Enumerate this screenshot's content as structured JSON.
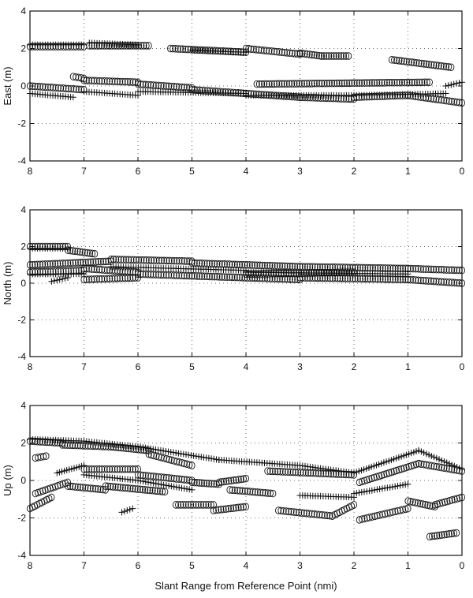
{
  "chart_data": [
    {
      "type": "scatter",
      "title": "",
      "xlabel": "",
      "ylabel": "East (m)",
      "xlim": [
        8,
        0
      ],
      "ylim": [
        -4,
        4
      ],
      "xticks": [
        8,
        7,
        6,
        5,
        4,
        3,
        2,
        1,
        0
      ],
      "yticks": [
        -4,
        -2,
        0,
        2,
        4
      ],
      "grid": true,
      "series": [
        {
          "marker": "circle",
          "segments": [
            {
              "x": [
                8.0,
                7.0
              ],
              "y": [
                2.1,
                2.1
              ]
            },
            {
              "x": [
                6.9,
                5.8
              ],
              "y": [
                2.15,
                2.15
              ]
            },
            {
              "x": [
                5.4,
                4.0
              ],
              "y": [
                2.0,
                1.8
              ]
            },
            {
              "x": [
                4.0,
                3.0
              ],
              "y": [
                2.0,
                1.7
              ]
            },
            {
              "x": [
                3.0,
                2.6
              ],
              "y": [
                1.75,
                1.6
              ]
            },
            {
              "x": [
                2.6,
                2.1
              ],
              "y": [
                1.6,
                1.6
              ]
            },
            {
              "x": [
                1.3,
                0.2
              ],
              "y": [
                1.4,
                1.0
              ]
            },
            {
              "x": [
                8.0,
                7.0
              ],
              "y": [
                0.0,
                -0.2
              ]
            },
            {
              "x": [
                7.0,
                6.0
              ],
              "y": [
                0.3,
                0.2
              ]
            },
            {
              "x": [
                6.0,
                5.0
              ],
              "y": [
                0.1,
                -0.1
              ]
            },
            {
              "x": [
                5.0,
                4.0
              ],
              "y": [
                -0.2,
                -0.4
              ]
            },
            {
              "x": [
                4.0,
                3.0
              ],
              "y": [
                -0.4,
                -0.6
              ]
            },
            {
              "x": [
                3.0,
                2.0
              ],
              "y": [
                -0.6,
                -0.7
              ]
            },
            {
              "x": [
                2.0,
                1.0
              ],
              "y": [
                -0.6,
                -0.5
              ]
            },
            {
              "x": [
                1.0,
                0.0
              ],
              "y": [
                -0.5,
                -0.9
              ]
            },
            {
              "x": [
                7.2,
                7.0
              ],
              "y": [
                0.5,
                0.4
              ]
            },
            {
              "x": [
                3.8,
                0.6
              ],
              "y": [
                0.1,
                0.2
              ]
            }
          ]
        },
        {
          "marker": "plus",
          "segments": [
            {
              "x": [
                8.0,
                7.0
              ],
              "y": [
                2.2,
                2.2
              ]
            },
            {
              "x": [
                6.9,
                6.0
              ],
              "y": [
                2.3,
                2.2
              ]
            },
            {
              "x": [
                5.0,
                4.0
              ],
              "y": [
                1.9,
                1.8
              ]
            },
            {
              "x": [
                8.0,
                7.2
              ],
              "y": [
                -0.4,
                -0.6
              ]
            },
            {
              "x": [
                7.0,
                6.0
              ],
              "y": [
                -0.3,
                -0.5
              ]
            },
            {
              "x": [
                6.0,
                4.0
              ],
              "y": [
                -0.3,
                -0.4
              ]
            },
            {
              "x": [
                4.0,
                2.0
              ],
              "y": [
                -0.5,
                -0.5
              ]
            },
            {
              "x": [
                2.0,
                0.3
              ],
              "y": [
                -0.5,
                -0.4
              ]
            },
            {
              "x": [
                0.3,
                0.0
              ],
              "y": [
                0.0,
                0.2
              ]
            }
          ]
        }
      ]
    },
    {
      "type": "scatter",
      "title": "",
      "xlabel": "",
      "ylabel": "North (m)",
      "xlim": [
        8,
        0
      ],
      "ylim": [
        -4,
        4
      ],
      "xticks": [
        8,
        7,
        6,
        5,
        4,
        3,
        2,
        1,
        0
      ],
      "yticks": [
        -4,
        -2,
        0,
        2,
        4
      ],
      "grid": true,
      "series": [
        {
          "marker": "circle",
          "segments": [
            {
              "x": [
                8.0,
                7.3
              ],
              "y": [
                2.0,
                2.0
              ]
            },
            {
              "x": [
                7.3,
                6.8
              ],
              "y": [
                1.8,
                1.6
              ]
            },
            {
              "x": [
                8.0,
                6.5
              ],
              "y": [
                1.0,
                1.2
              ]
            },
            {
              "x": [
                6.5,
                5.0
              ],
              "y": [
                1.3,
                1.2
              ]
            },
            {
              "x": [
                5.0,
                3.0
              ],
              "y": [
                1.1,
                0.9
              ]
            },
            {
              "x": [
                3.0,
                1.0
              ],
              "y": [
                0.9,
                0.8
              ]
            },
            {
              "x": [
                1.0,
                0.0
              ],
              "y": [
                0.8,
                0.7
              ]
            },
            {
              "x": [
                8.0,
                7.0
              ],
              "y": [
                0.6,
                0.7
              ]
            },
            {
              "x": [
                7.0,
                6.0
              ],
              "y": [
                0.8,
                0.6
              ]
            },
            {
              "x": [
                6.0,
                5.0
              ],
              "y": [
                0.5,
                0.4
              ]
            },
            {
              "x": [
                5.0,
                3.0
              ],
              "y": [
                0.4,
                0.2
              ]
            },
            {
              "x": [
                3.0,
                1.0
              ],
              "y": [
                0.3,
                0.2
              ]
            },
            {
              "x": [
                1.0,
                0.0
              ],
              "y": [
                0.2,
                0.0
              ]
            },
            {
              "x": [
                7.0,
                6.0
              ],
              "y": [
                0.2,
                0.3
              ]
            },
            {
              "x": [
                4.0,
                2.0
              ],
              "y": [
                0.5,
                0.6
              ]
            }
          ]
        },
        {
          "marker": "plus",
          "segments": [
            {
              "x": [
                8.0,
                7.3
              ],
              "y": [
                1.9,
                1.9
              ]
            },
            {
              "x": [
                8.0,
                7.0
              ],
              "y": [
                0.5,
                0.5
              ]
            },
            {
              "x": [
                7.6,
                7.3
              ],
              "y": [
                0.1,
                0.3
              ]
            },
            {
              "x": [
                6.5,
                4.0
              ],
              "y": [
                0.9,
                0.7
              ]
            },
            {
              "x": [
                4.0,
                1.0
              ],
              "y": [
                0.6,
                0.5
              ]
            }
          ]
        }
      ]
    },
    {
      "type": "scatter",
      "title": "",
      "xlabel": "Slant Range from Reference Point (nmi)",
      "ylabel": "Up (m)",
      "xlim": [
        8,
        0
      ],
      "ylim": [
        -4,
        4
      ],
      "xticks": [
        8,
        7,
        6,
        5,
        4,
        3,
        2,
        1,
        0
      ],
      "yticks": [
        -4,
        -2,
        0,
        2,
        4
      ],
      "grid": true,
      "series": [
        {
          "marker": "circle",
          "segments": [
            {
              "x": [
                8.0,
                7.4
              ],
              "y": [
                2.1,
                2.0
              ]
            },
            {
              "x": [
                7.4,
                6.5
              ],
              "y": [
                1.9,
                1.8
              ]
            },
            {
              "x": [
                6.5,
                5.8
              ],
              "y": [
                1.8,
                1.6
              ]
            },
            {
              "x": [
                5.8,
                5.0
              ],
              "y": [
                1.4,
                0.8
              ]
            },
            {
              "x": [
                7.0,
                6.0
              ],
              "y": [
                0.6,
                0.6
              ]
            },
            {
              "x": [
                6.0,
                5.0
              ],
              "y": [
                0.3,
                0.0
              ]
            },
            {
              "x": [
                5.0,
                4.5
              ],
              "y": [
                -0.1,
                -0.2
              ]
            },
            {
              "x": [
                4.5,
                4.0
              ],
              "y": [
                -0.1,
                0.1
              ]
            },
            {
              "x": [
                3.6,
                2.0
              ],
              "y": [
                0.5,
                0.3
              ]
            },
            {
              "x": [
                1.9,
                0.8
              ],
              "y": [
                -0.1,
                0.9
              ]
            },
            {
              "x": [
                0.8,
                0.0
              ],
              "y": [
                0.9,
                0.5
              ]
            },
            {
              "x": [
                7.9,
                7.3
              ],
              "y": [
                -0.7,
                -0.1
              ]
            },
            {
              "x": [
                7.3,
                6.6
              ],
              "y": [
                -0.3,
                -0.5
              ]
            },
            {
              "x": [
                6.6,
                5.5
              ],
              "y": [
                -0.3,
                -0.6
              ]
            },
            {
              "x": [
                5.3,
                4.6
              ],
              "y": [
                -1.3,
                -1.3
              ]
            },
            {
              "x": [
                4.6,
                4.0
              ],
              "y": [
                -1.6,
                -1.4
              ]
            },
            {
              "x": [
                4.3,
                3.5
              ],
              "y": [
                -0.5,
                -0.7
              ]
            },
            {
              "x": [
                3.4,
                2.4
              ],
              "y": [
                -1.6,
                -1.9
              ]
            },
            {
              "x": [
                2.4,
                2.0
              ],
              "y": [
                -1.9,
                -1.3
              ]
            },
            {
              "x": [
                1.9,
                1.0
              ],
              "y": [
                -2.1,
                -1.5
              ]
            },
            {
              "x": [
                1.0,
                0.5
              ],
              "y": [
                -1.1,
                -1.4
              ]
            },
            {
              "x": [
                0.5,
                0.0
              ],
              "y": [
                -1.3,
                -0.9
              ]
            },
            {
              "x": [
                8.0,
                7.6
              ],
              "y": [
                -1.5,
                -0.9
              ]
            },
            {
              "x": [
                0.6,
                0.1
              ],
              "y": [
                -3.0,
                -2.8
              ]
            },
            {
              "x": [
                7.9,
                7.7
              ],
              "y": [
                1.2,
                1.3
              ]
            }
          ]
        },
        {
          "marker": "plus",
          "segments": [
            {
              "x": [
                8.0,
                7.0
              ],
              "y": [
                2.2,
                2.1
              ]
            },
            {
              "x": [
                7.0,
                6.0
              ],
              "y": [
                2.1,
                1.8
              ]
            },
            {
              "x": [
                6.0,
                4.5
              ],
              "y": [
                1.8,
                1.1
              ]
            },
            {
              "x": [
                4.5,
                3.0
              ],
              "y": [
                1.1,
                0.8
              ]
            },
            {
              "x": [
                3.0,
                2.0
              ],
              "y": [
                0.8,
                0.4
              ]
            },
            {
              "x": [
                2.0,
                0.8
              ],
              "y": [
                0.4,
                1.6
              ]
            },
            {
              "x": [
                0.8,
                0.0
              ],
              "y": [
                1.6,
                0.6
              ]
            },
            {
              "x": [
                7.5,
                7.0
              ],
              "y": [
                0.4,
                0.8
              ]
            },
            {
              "x": [
                7.0,
                6.0
              ],
              "y": [
                0.3,
                0.0
              ]
            },
            {
              "x": [
                6.0,
                5.0
              ],
              "y": [
                0.0,
                -0.5
              ]
            },
            {
              "x": [
                3.0,
                2.0
              ],
              "y": [
                -0.8,
                -0.9
              ]
            },
            {
              "x": [
                2.0,
                1.0
              ],
              "y": [
                -0.7,
                -0.2
              ]
            },
            {
              "x": [
                6.3,
                6.1
              ],
              "y": [
                -1.7,
                -1.5
              ]
            }
          ]
        }
      ]
    }
  ]
}
